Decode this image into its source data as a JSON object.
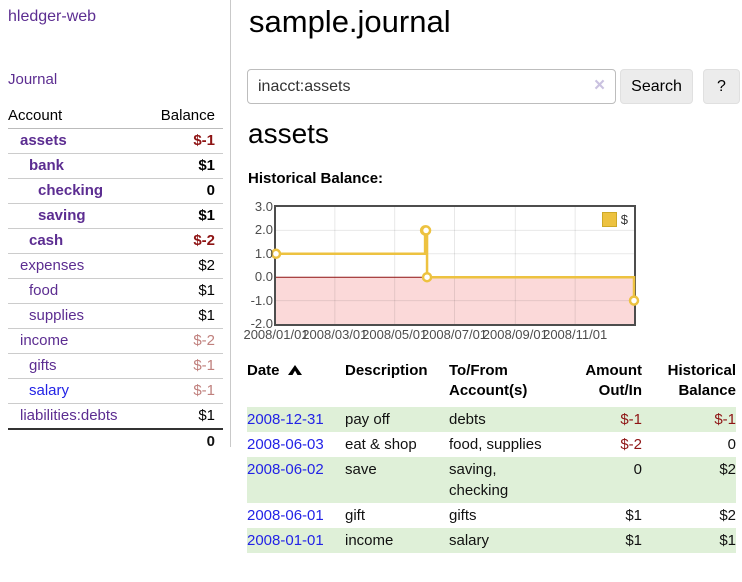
{
  "app": {
    "brand": "hledger-web",
    "nav_journal": "Journal"
  },
  "sidebar": {
    "headers": {
      "account": "Account",
      "balance": "Balance"
    },
    "accounts": [
      {
        "name": "assets",
        "depth": 1,
        "bold": true,
        "link": "purple",
        "balance": "$-1",
        "balance_style": "neg-strong"
      },
      {
        "name": "bank",
        "depth": 2,
        "bold": true,
        "link": "purple",
        "balance": "$1",
        "balance_style": "pos-strong"
      },
      {
        "name": "checking",
        "depth": 3,
        "bold": true,
        "link": "purple",
        "balance": "0",
        "balance_style": "pos-strong"
      },
      {
        "name": "saving",
        "depth": 3,
        "bold": true,
        "link": "purple",
        "balance": "$1",
        "balance_style": "pos-strong"
      },
      {
        "name": "cash",
        "depth": 2,
        "bold": true,
        "link": "purple",
        "balance": "$-2",
        "balance_style": "neg-strong"
      },
      {
        "name": "expenses",
        "depth": 1,
        "bold": false,
        "link": "purple",
        "balance": "$2",
        "balance_style": "pos"
      },
      {
        "name": "food",
        "depth": 2,
        "bold": false,
        "link": "purple",
        "balance": "$1",
        "balance_style": "pos"
      },
      {
        "name": "supplies",
        "depth": 2,
        "bold": false,
        "link": "purple",
        "balance": "$1",
        "balance_style": "pos"
      },
      {
        "name": "income",
        "depth": 1,
        "bold": false,
        "link": "purple",
        "balance": "$-2",
        "balance_style": "neg-muted"
      },
      {
        "name": "gifts",
        "depth": 2,
        "bold": false,
        "link": "purple",
        "balance": "$-1",
        "balance_style": "neg-muted"
      },
      {
        "name": "salary",
        "depth": 2,
        "bold": false,
        "link": "blue",
        "balance": "$-1",
        "balance_style": "neg-muted"
      },
      {
        "name": "liabilities:debts",
        "depth": 1,
        "bold": false,
        "link": "purple",
        "balance": "$1",
        "balance_style": "pos"
      }
    ],
    "total": "0"
  },
  "header": {
    "title": "sample.journal"
  },
  "search": {
    "value": "inacct:assets",
    "clear_icon": "×",
    "button": "Search",
    "help_button": "?"
  },
  "account_page": {
    "heading": "assets",
    "chart_label": "Historical Balance:"
  },
  "chart_data": {
    "type": "line",
    "step": true,
    "title": "Historical Balance:",
    "x_min": "2008-01-01",
    "x_max": "2008-12-31",
    "ylim": [
      -2,
      3
    ],
    "y_ticks": [
      {
        "label": "3.0",
        "value": 3
      },
      {
        "label": "2.0",
        "value": 2
      },
      {
        "label": "1.0",
        "value": 1
      },
      {
        "label": "0.0",
        "value": 0
      },
      {
        "label": "-1.0",
        "value": -1
      },
      {
        "label": "-2.0",
        "value": -2
      }
    ],
    "x_ticks": [
      {
        "label": "2008/01/01",
        "date": "2008-01-01"
      },
      {
        "label": "2008/03/01",
        "date": "2008-03-01"
      },
      {
        "label": "2008/05/01",
        "date": "2008-05-01"
      },
      {
        "label": "2008/07/01",
        "date": "2008-07-01"
      },
      {
        "label": "2008/09/01",
        "date": "2008-09-01"
      },
      {
        "label": "2008/11/01",
        "date": "2008-11-01"
      }
    ],
    "series": [
      {
        "name": "$",
        "color": "#edc240",
        "points": [
          {
            "date": "2008-01-01",
            "value": 1
          },
          {
            "date": "2008-06-01",
            "value": 2
          },
          {
            "date": "2008-06-02",
            "value": 2
          },
          {
            "date": "2008-06-03",
            "value": 0
          },
          {
            "date": "2008-12-31",
            "value": -1
          }
        ]
      }
    ],
    "legend_position": "top-right",
    "grid": true,
    "colors": {
      "line": "#edc240",
      "marker_fill": "#ffffff",
      "negative_fill": "#fbd9d9",
      "zero_line": "#8e1212",
      "grid_line": "rgba(0,0,0,0.09)",
      "border": "#4d4d4d"
    }
  },
  "register": {
    "headers": {
      "date": "Date",
      "description": "Description",
      "accounts": "To/From Account(s)",
      "amount": "Amount Out/In",
      "balance": "Historical Balance"
    },
    "rows": [
      {
        "date": "2008-12-31",
        "description": "pay off",
        "accounts": "debts",
        "amount": "$-1",
        "amount_neg": true,
        "balance": "$-1",
        "balance_neg": true,
        "shaded": true
      },
      {
        "date": "2008-06-03",
        "description": "eat & shop",
        "accounts": "food, supplies",
        "amount": "$-2",
        "amount_neg": true,
        "balance": "0",
        "balance_neg": false,
        "shaded": false
      },
      {
        "date": "2008-06-02",
        "description": "save",
        "accounts": "saving, checking",
        "amount": "0",
        "amount_neg": false,
        "balance": "$2",
        "balance_neg": false,
        "shaded": true
      },
      {
        "date": "2008-06-01",
        "description": "gift",
        "accounts": "gifts",
        "amount": "$1",
        "amount_neg": false,
        "balance": "$2",
        "balance_neg": false,
        "shaded": false
      },
      {
        "date": "2008-01-01",
        "description": "income",
        "accounts": "salary",
        "amount": "$1",
        "amount_neg": false,
        "balance": "$1",
        "balance_neg": false,
        "shaded": true
      }
    ]
  },
  "colors": {
    "link_purple": "#5c2d91",
    "link_blue": "#2323e6",
    "negative_strong": "#8e1414",
    "negative_muted": "#c0807d",
    "row_green": "#dff0d8"
  }
}
